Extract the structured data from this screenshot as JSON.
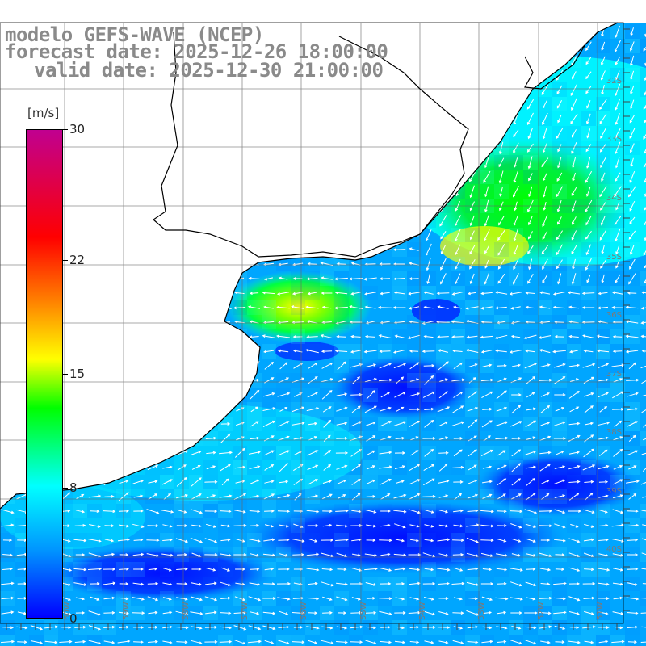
{
  "header": {
    "model": "modelo GEFS-WAVE (NCEP)",
    "forecast": "forecast date: 2025-12-26 18:00:00",
    "valid": "valid date: 2025-12-30 21:00:00"
  },
  "legend": {
    "unit": "[m/s]",
    "ticks": [
      {
        "value": 30,
        "label": "30"
      },
      {
        "value": 22,
        "label": "22"
      },
      {
        "value": 15,
        "label": "15"
      },
      {
        "value": 8,
        "label": "8"
      },
      {
        "value": 0,
        "label": "0"
      }
    ],
    "range": [
      0,
      30
    ],
    "colors": [
      "#0000ff",
      "#0096ff",
      "#00ffff",
      "#00ff00",
      "#ffff00",
      "#ff8000",
      "#ff0000",
      "#c00090"
    ]
  },
  "map": {
    "latitude_labels": [
      "32S",
      "33S",
      "34S",
      "35S",
      "36S",
      "37S",
      "38S",
      "39S",
      "40S"
    ],
    "longitude_labels": [
      "60W",
      "59W",
      "58W",
      "57W",
      "56W",
      "55W",
      "54W",
      "53W",
      "52W",
      "51W"
    ],
    "grid": true
  }
}
